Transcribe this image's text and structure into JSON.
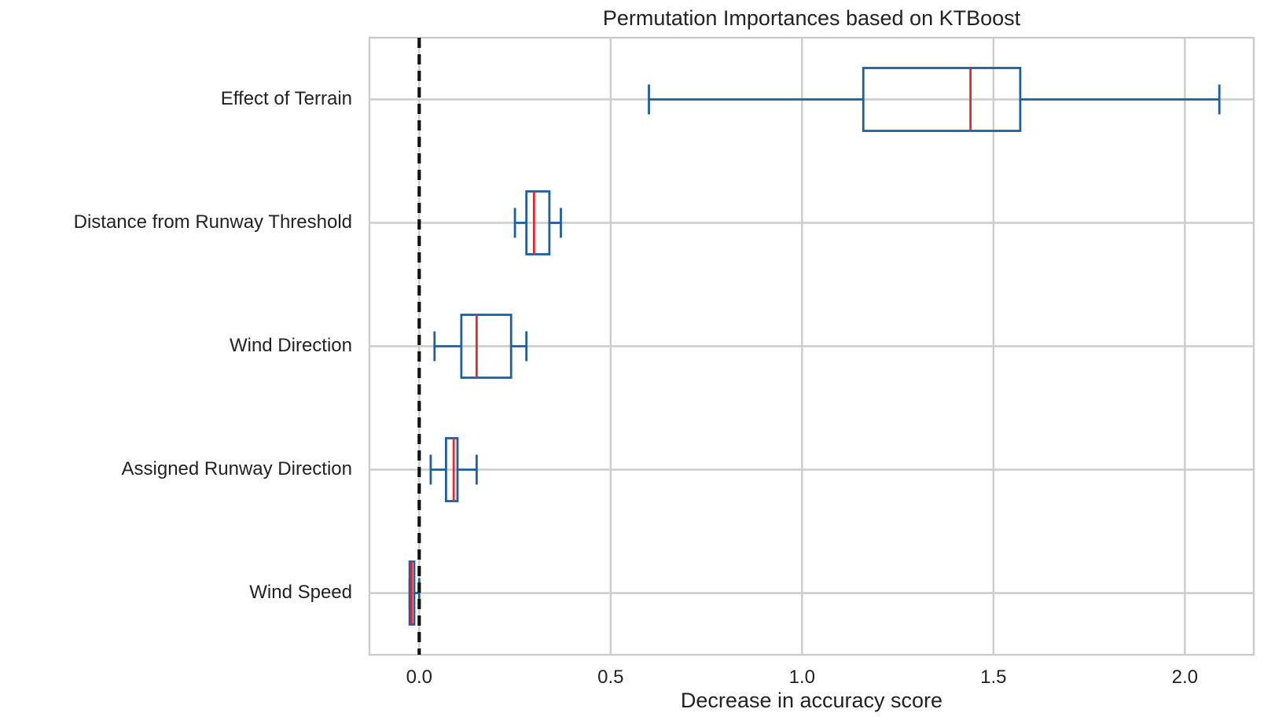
{
  "chart_data": {
    "type": "boxplot",
    "orientation": "horizontal",
    "title": "Permutation Importances based on KTBoost",
    "xlabel": "Decrease in accuracy score",
    "ylabel": "",
    "xlim": [
      -0.13,
      2.18
    ],
    "xticks": [
      0.0,
      0.5,
      1.0,
      1.5,
      2.0
    ],
    "xtick_labels": [
      "0.0",
      "0.5",
      "1.0",
      "1.5",
      "2.0"
    ],
    "grid": true,
    "reference_line": {
      "x": 0,
      "style": "dashed",
      "color": "#111111"
    },
    "categories": [
      "Effect of Terrain",
      "Distance from Runway Threshold",
      "Wind Direction",
      "Assigned Runway Direction",
      "Wind Speed"
    ],
    "series": [
      {
        "name": "Effect of Terrain",
        "whisker_low": 0.6,
        "q1": 1.16,
        "median": 1.44,
        "q3": 1.57,
        "whisker_high": 2.09
      },
      {
        "name": "Distance from Runway Threshold",
        "whisker_low": 0.25,
        "q1": 0.28,
        "median": 0.3,
        "q3": 0.34,
        "whisker_high": 0.37
      },
      {
        "name": "Wind Direction",
        "whisker_low": 0.04,
        "q1": 0.11,
        "median": 0.15,
        "q3": 0.24,
        "whisker_high": 0.28
      },
      {
        "name": "Assigned Runway Direction",
        "whisker_low": 0.03,
        "q1": 0.07,
        "median": 0.09,
        "q3": 0.1,
        "whisker_high": 0.15
      },
      {
        "name": "Wind Speed",
        "whisker_low": -0.025,
        "q1": -0.025,
        "median": -0.02,
        "q3": -0.013,
        "whisker_high": 0.0
      }
    ],
    "colors": {
      "box": "#1f5fa0",
      "median": "#e8262c",
      "grid": "#cccccc",
      "frame": "#cccccc",
      "text": "#222222"
    }
  }
}
